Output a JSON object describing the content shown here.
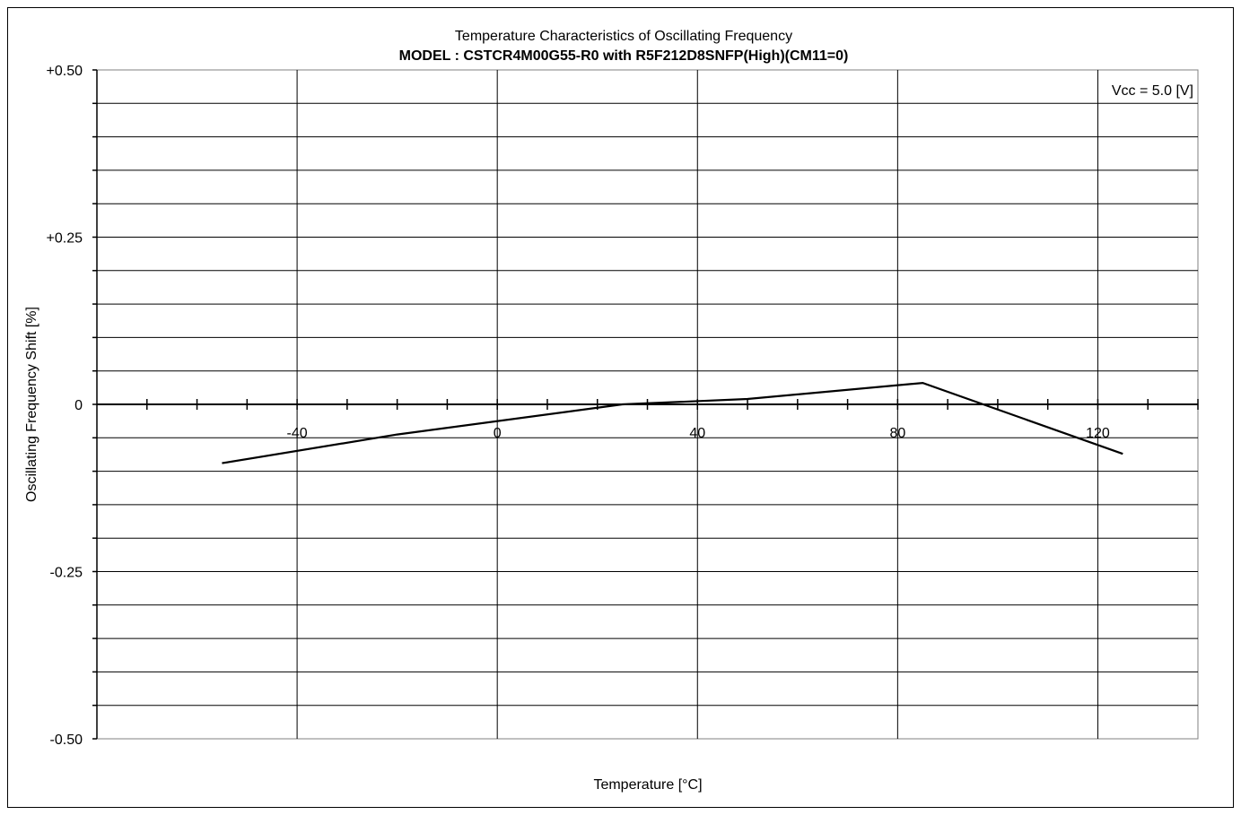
{
  "chart_data": {
    "type": "line",
    "title": "Temperature Characteristics of Oscillating Frequency",
    "subtitle": "MODEL : CSTCR4M00G55-R0 with R5F212D8SNFP(High)(CM11=0)",
    "xlabel": "Temperature [°C]",
    "ylabel": "Oscillating Frequency Shift [%]",
    "annotation": "Vcc = 5.0 [V]",
    "xlim": [
      -80,
      140
    ],
    "ylim": [
      -0.5,
      0.5
    ],
    "x_ticks": [
      -40,
      0,
      40,
      80,
      120
    ],
    "x_tick_labels": [
      "-40",
      "0",
      "40",
      "80",
      "120"
    ],
    "y_ticks": [
      0.5,
      0.25,
      0,
      -0.25,
      -0.5
    ],
    "y_tick_labels": [
      "+0.50",
      "+0.25",
      "0",
      "-0.25",
      "-0.50"
    ],
    "grid": true,
    "series": [
      {
        "x": [
          -55,
          -20,
          25,
          50,
          85,
          125
        ],
        "y": [
          -0.088,
          -0.045,
          0.0,
          0.008,
          0.032,
          -0.074
        ]
      }
    ]
  }
}
